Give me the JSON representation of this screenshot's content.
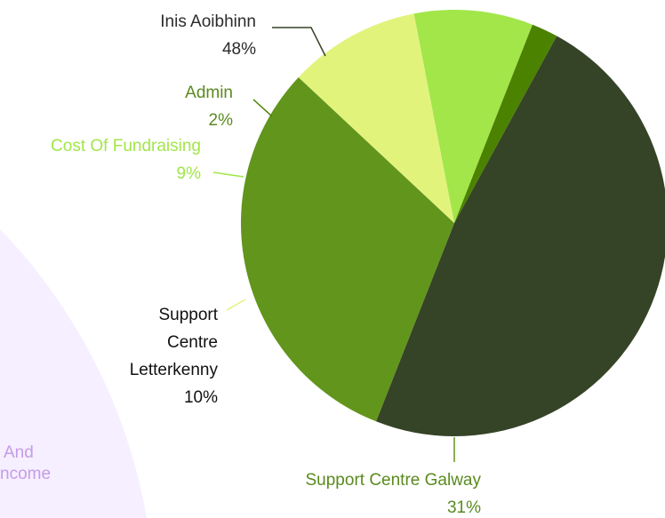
{
  "background": {
    "fragment_lines": [
      "And",
      "ncome"
    ],
    "shape_color": "#f5efff",
    "text_color": "#c79be8"
  },
  "chart_data": {
    "type": "pie",
    "title": "",
    "slices": [
      {
        "label": [
          "Inis Aoibhinn"
        ],
        "percent_label": "48%",
        "value": 48,
        "color": "#354327"
      },
      {
        "label": [
          "Support Centre Galway"
        ],
        "percent_label": "31%",
        "value": 31,
        "color": "#62951c"
      },
      {
        "label": [
          "Support",
          "Centre",
          "Letterkenny"
        ],
        "percent_label": "10%",
        "value": 10,
        "color": "#e2f37c"
      },
      {
        "label": [
          "Cost Of Fundraising"
        ],
        "percent_label": "9%",
        "value": 9,
        "color": "#a2e64a"
      },
      {
        "label": [
          "Admin"
        ],
        "percent_label": "2%",
        "value": 2,
        "color": "#4b8200"
      }
    ],
    "label_colors": [
      "#2b2b2b",
      "#5a8a1f",
      "#111111",
      "#a2e64a",
      "#5a8a1f"
    ]
  }
}
